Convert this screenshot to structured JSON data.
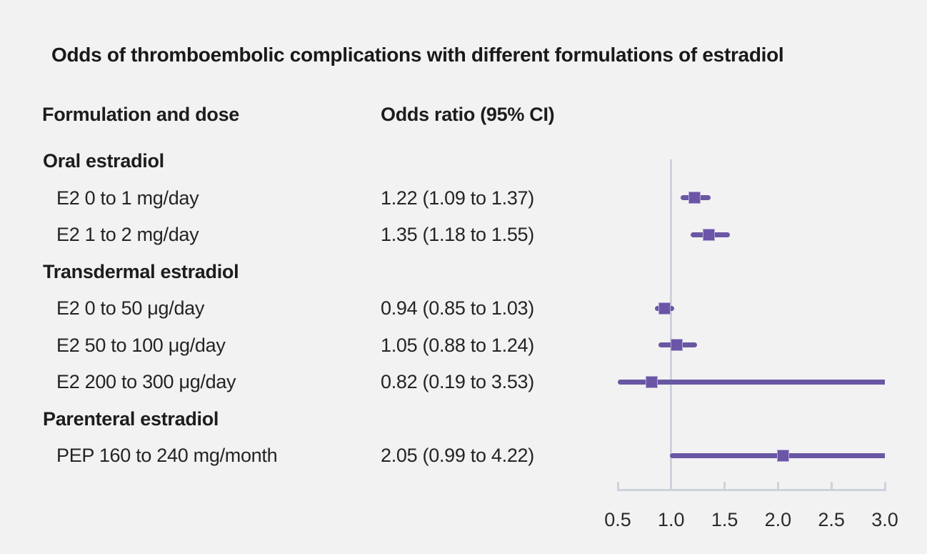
{
  "title": "Odds of thromboembolic complications with different formulations of estradiol",
  "columns": {
    "formulation": "Formulation and dose",
    "odds_ratio": "Odds ratio (95% CI)"
  },
  "colors": {
    "background": "#f2f2f2",
    "text": "#242424",
    "heading_text": "#191919",
    "marker_purple": "#6b55a6",
    "ci_line_purple": "#6a57a4",
    "marker_edge": "#b2a8d6",
    "axis_gray": "#cdd1dc"
  },
  "chart_data": {
    "type": "forest",
    "title": "Odds of thromboembolic complications with different formulations of estradiol",
    "xlabel": "",
    "ylabel": "",
    "xlim": [
      0.5,
      3.0
    ],
    "reference_value": 1.0,
    "tick_values": [
      0.5,
      1.0,
      1.5,
      2.0,
      2.5,
      3.0
    ],
    "tick_labels": [
      "0.5",
      "1.0",
      "1.5",
      "2.0",
      "2.5",
      "3.0"
    ],
    "grid": false,
    "legend": "none",
    "rows": [
      {
        "kind": "group",
        "label": "Oral estradiol"
      },
      {
        "kind": "item",
        "label": "E2 0 to 1 mg/day",
        "or_text": "1.22 (1.09 to 1.37)",
        "or": 1.22,
        "lo": 1.09,
        "hi": 1.37
      },
      {
        "kind": "item",
        "label": "E2 1 to 2 mg/day",
        "or_text": "1.35 (1.18 to 1.55)",
        "or": 1.35,
        "lo": 1.18,
        "hi": 1.55
      },
      {
        "kind": "group",
        "label": "Transdermal estradiol"
      },
      {
        "kind": "item",
        "label": "E2 0 to 50 μg/day",
        "or_text": "0.94 (0.85 to 1.03)",
        "or": 0.94,
        "lo": 0.85,
        "hi": 1.03
      },
      {
        "kind": "item",
        "label": "E2 50 to 100 μg/day",
        "or_text": "1.05 (0.88 to 1.24)",
        "or": 1.05,
        "lo": 0.88,
        "hi": 1.24
      },
      {
        "kind": "item",
        "label": "E2 200 to 300 μg/day",
        "or_text": "0.82 (0.19 to 3.53)",
        "or": 0.82,
        "lo": 0.19,
        "hi": 3.53
      },
      {
        "kind": "group",
        "label": "Parenteral estradiol"
      },
      {
        "kind": "item",
        "label": "PEP 160 to 240 mg/month",
        "or_text": "2.05 (0.99 to 4.22)",
        "or": 2.05,
        "lo": 0.99,
        "hi": 4.22
      }
    ]
  }
}
